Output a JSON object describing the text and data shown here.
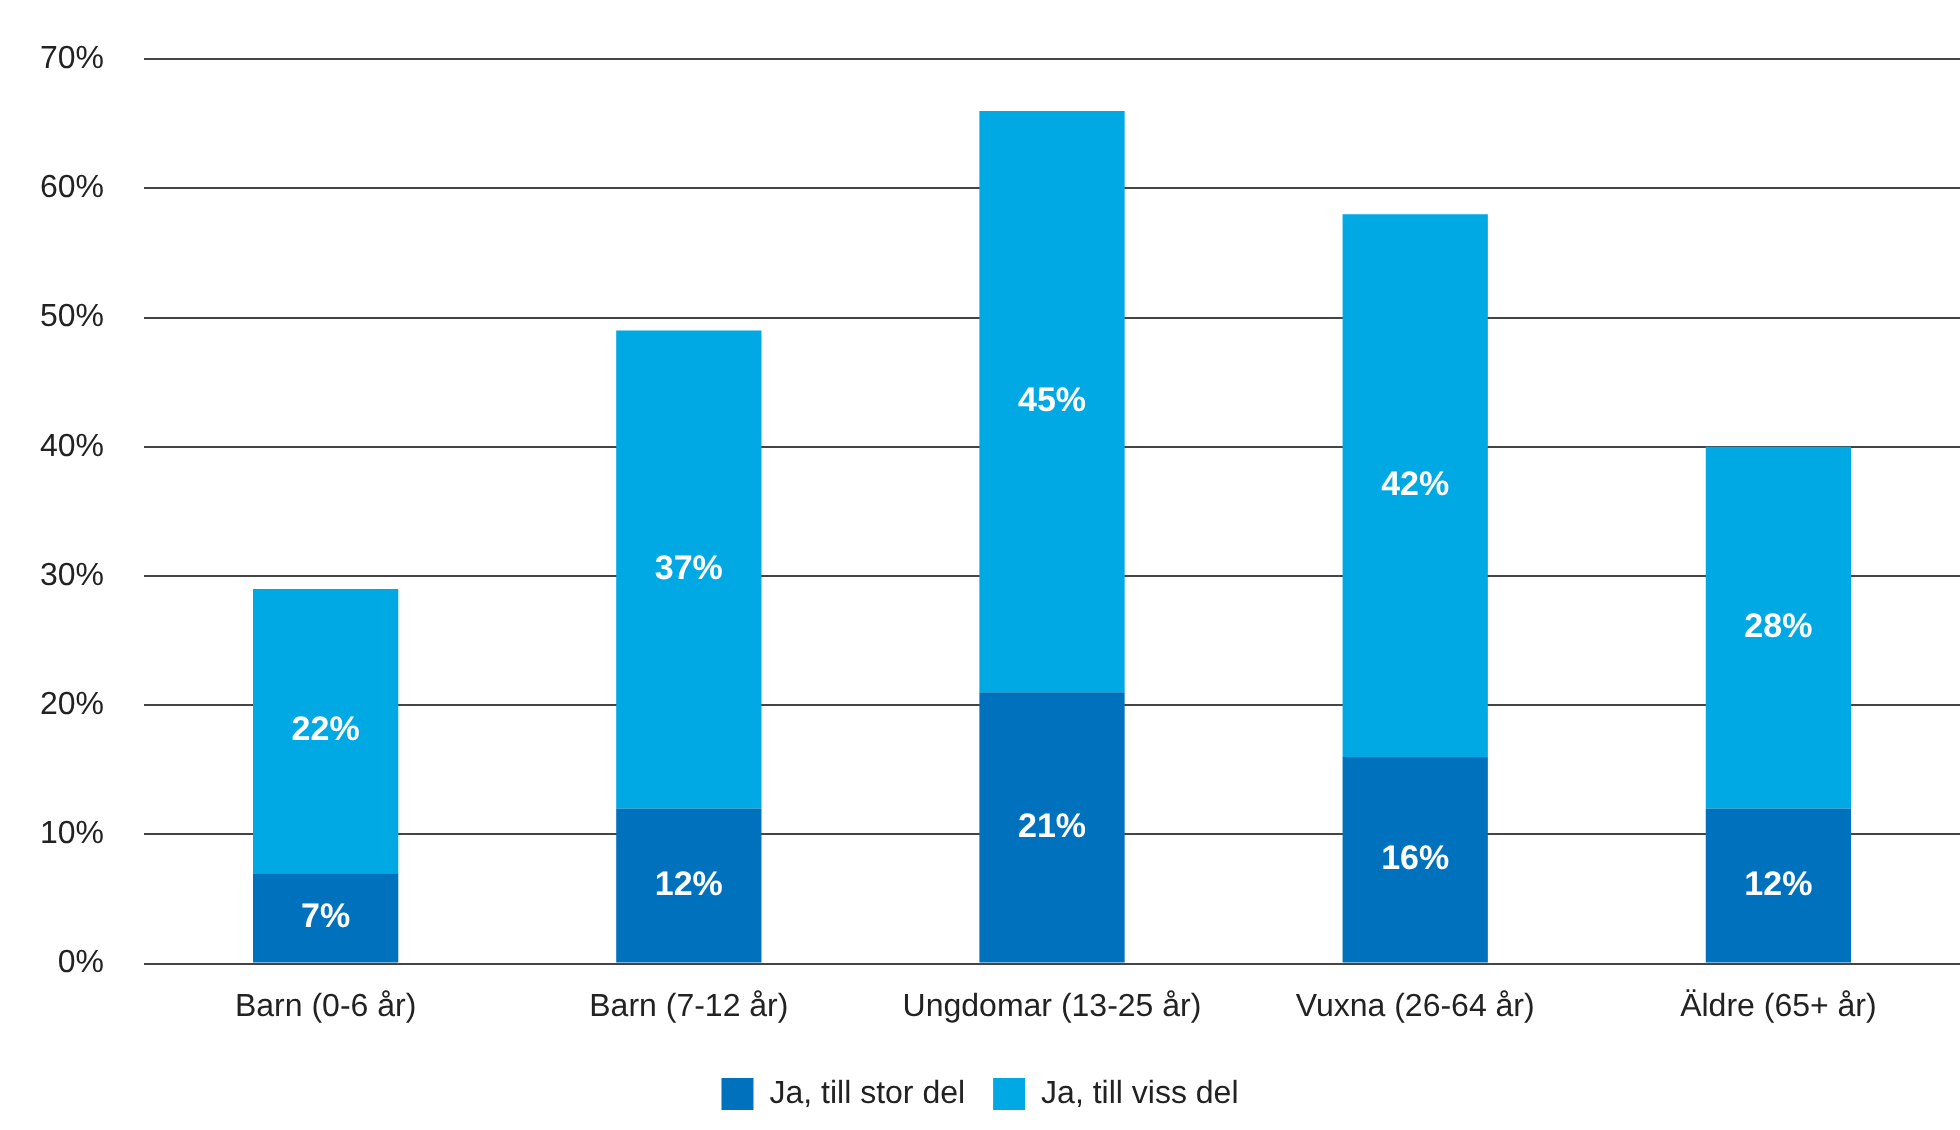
{
  "chart_data": {
    "type": "bar",
    "stacked": true,
    "categories": [
      "Barn (0-6 år)",
      "Barn (7-12 år)",
      "Ungdomar (13-25 år)",
      "Vuxna (26-64 år)",
      "Äldre (65+ år)"
    ],
    "series": [
      {
        "name": "Ja, till stor del",
        "color": "#0071bc",
        "values": [
          7,
          12,
          21,
          16,
          12
        ],
        "value_labels": [
          "7%",
          "12%",
          "21%",
          "16%",
          "12%"
        ]
      },
      {
        "name": "Ja, till viss del",
        "color": "#00a9e4",
        "values": [
          22,
          37,
          45,
          42,
          28
        ],
        "value_labels": [
          "22%",
          "37%",
          "45%",
          "42%",
          "28%"
        ]
      }
    ],
    "ylim": [
      0,
      70
    ],
    "yticks": [
      {
        "value": 0,
        "label": "0%"
      },
      {
        "value": 10,
        "label": "10%"
      },
      {
        "value": 20,
        "label": "20%"
      },
      {
        "value": 30,
        "label": "30%"
      },
      {
        "value": 40,
        "label": "40%"
      },
      {
        "value": 50,
        "label": "50%"
      },
      {
        "value": 60,
        "label": "60%"
      },
      {
        "value": 70,
        "label": "70%"
      }
    ],
    "grid": "y",
    "legend": "bottom"
  }
}
